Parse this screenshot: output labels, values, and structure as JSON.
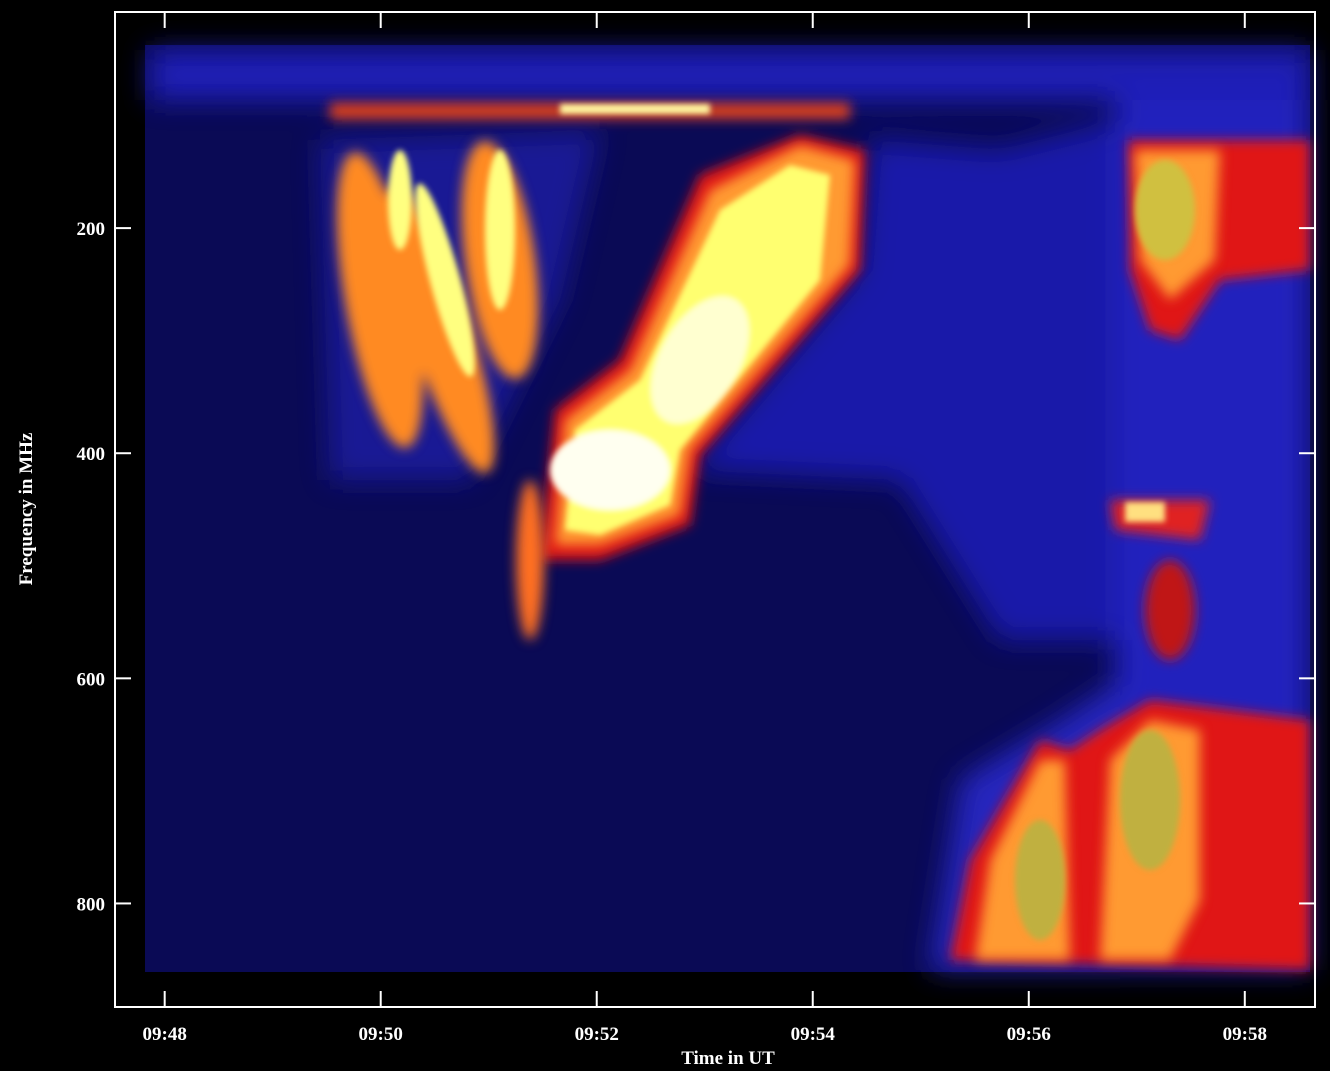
{
  "chart_data": {
    "type": "spectrogram",
    "xlabel": "Time in UT",
    "ylabel": "Frequency in MHz",
    "xlim": [
      587.54,
      598.65
    ],
    "xticks": [
      {
        "value": 588,
        "label": "09:48"
      },
      {
        "value": 590,
        "label": "09:50"
      },
      {
        "value": 592,
        "label": "09:52"
      },
      {
        "value": 594,
        "label": "09:54"
      },
      {
        "value": 596,
        "label": "09:56"
      },
      {
        "value": 598,
        "label": "09:58"
      }
    ],
    "ylim": [
      892,
      8
    ],
    "yticks": [
      200,
      400,
      600,
      800
    ]
  }
}
